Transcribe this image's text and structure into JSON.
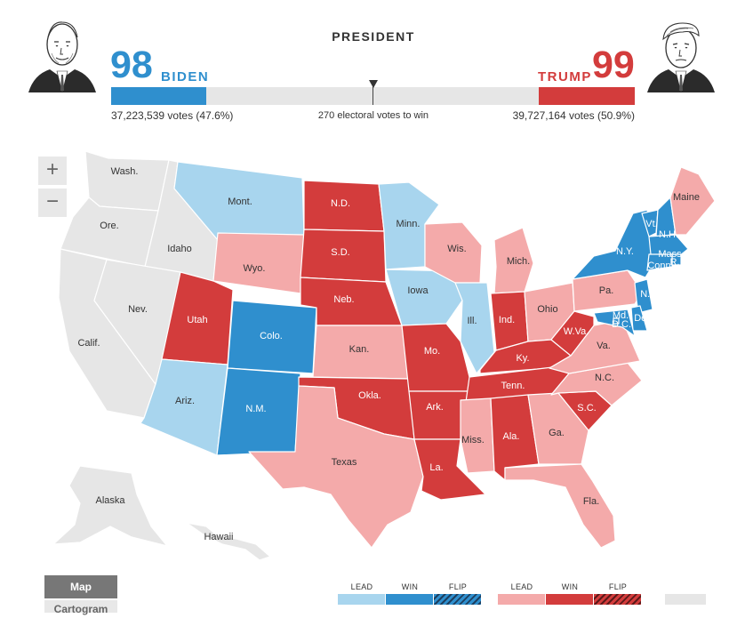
{
  "race": {
    "title": "PRESIDENT",
    "to_win": "270 electoral votes to win"
  },
  "colors": {
    "dem_lead": "#a8d5ee",
    "dem_win": "#2f8fce",
    "rep_lead": "#f4aaaa",
    "rep_win": "#d33c3c",
    "pending": "#e6e6e6"
  },
  "candidates": {
    "dem": {
      "name": "BIDEN",
      "electoral_votes": "98",
      "votes_text": "37,223,539 votes (47.6%)",
      "ev_fraction": 0.182
    },
    "rep": {
      "name": "TRUMP",
      "electoral_votes": "99",
      "votes_text": "39,727,164 votes (50.9%)",
      "ev_fraction": 0.184
    }
  },
  "zoom": {
    "in": "+",
    "out": "−"
  },
  "tabs": {
    "map": "Map",
    "cartogram": "Cartogram"
  },
  "legend": {
    "dem": {
      "lead": "LEAD",
      "win": "WIN",
      "flip": "FLIP"
    },
    "rep": {
      "lead": "LEAD",
      "win": "WIN",
      "flip": "FLIP"
    }
  },
  "map_data": {
    "states": [
      {
        "name": "Wash.",
        "status": "pending"
      },
      {
        "name": "Ore.",
        "status": "pending"
      },
      {
        "name": "Calif.",
        "status": "pending"
      },
      {
        "name": "Idaho",
        "status": "pending"
      },
      {
        "name": "Nev.",
        "status": "pending"
      },
      {
        "name": "Mont.",
        "status": "dem_lead"
      },
      {
        "name": "Wyo.",
        "status": "rep_lead"
      },
      {
        "name": "Utah",
        "status": "rep_win"
      },
      {
        "name": "Colo.",
        "status": "dem_win"
      },
      {
        "name": "Ariz.",
        "status": "dem_lead"
      },
      {
        "name": "N.M.",
        "status": "dem_win"
      },
      {
        "name": "N.D.",
        "status": "rep_win"
      },
      {
        "name": "S.D.",
        "status": "rep_win"
      },
      {
        "name": "Neb.",
        "status": "rep_win"
      },
      {
        "name": "Kan.",
        "status": "rep_lead"
      },
      {
        "name": "Okla.",
        "status": "rep_win"
      },
      {
        "name": "Texas",
        "status": "rep_lead"
      },
      {
        "name": "Minn.",
        "status": "dem_lead"
      },
      {
        "name": "Iowa",
        "status": "dem_lead"
      },
      {
        "name": "Mo.",
        "status": "rep_win"
      },
      {
        "name": "Ark.",
        "status": "rep_win"
      },
      {
        "name": "La.",
        "status": "rep_win"
      },
      {
        "name": "Wis.",
        "status": "rep_lead"
      },
      {
        "name": "Ill.",
        "status": "dem_lead"
      },
      {
        "name": "Mich.",
        "status": "rep_lead"
      },
      {
        "name": "Ind.",
        "status": "rep_win"
      },
      {
        "name": "Ohio",
        "status": "rep_lead"
      },
      {
        "name": "Ky.",
        "status": "rep_win"
      },
      {
        "name": "Tenn.",
        "status": "rep_win"
      },
      {
        "name": "Miss.",
        "status": "rep_lead"
      },
      {
        "name": "Ala.",
        "status": "rep_win"
      },
      {
        "name": "Ga.",
        "status": "rep_lead"
      },
      {
        "name": "Fla.",
        "status": "rep_lead"
      },
      {
        "name": "S.C.",
        "status": "rep_win"
      },
      {
        "name": "N.C.",
        "status": "rep_lead"
      },
      {
        "name": "Va.",
        "status": "rep_lead"
      },
      {
        "name": "W.Va.",
        "status": "rep_win"
      },
      {
        "name": "Pa.",
        "status": "rep_lead"
      },
      {
        "name": "N.Y.",
        "status": "dem_win"
      },
      {
        "name": "Vt.",
        "status": "dem_win"
      },
      {
        "name": "N.H.",
        "status": "dem_win"
      },
      {
        "name": "Maine",
        "status": "rep_lead"
      },
      {
        "name": "Mass.",
        "status": "dem_win"
      },
      {
        "name": "R.I.",
        "status": "dem_win"
      },
      {
        "name": "Conn.",
        "status": "dem_win"
      },
      {
        "name": "N.J.",
        "status": "dem_win"
      },
      {
        "name": "Del.",
        "status": "dem_win"
      },
      {
        "name": "Md.",
        "status": "dem_win"
      },
      {
        "name": "D.C.",
        "status": "dem_win"
      },
      {
        "name": "Alaska",
        "status": "pending"
      },
      {
        "name": "Hawaii",
        "status": "pending"
      }
    ]
  }
}
